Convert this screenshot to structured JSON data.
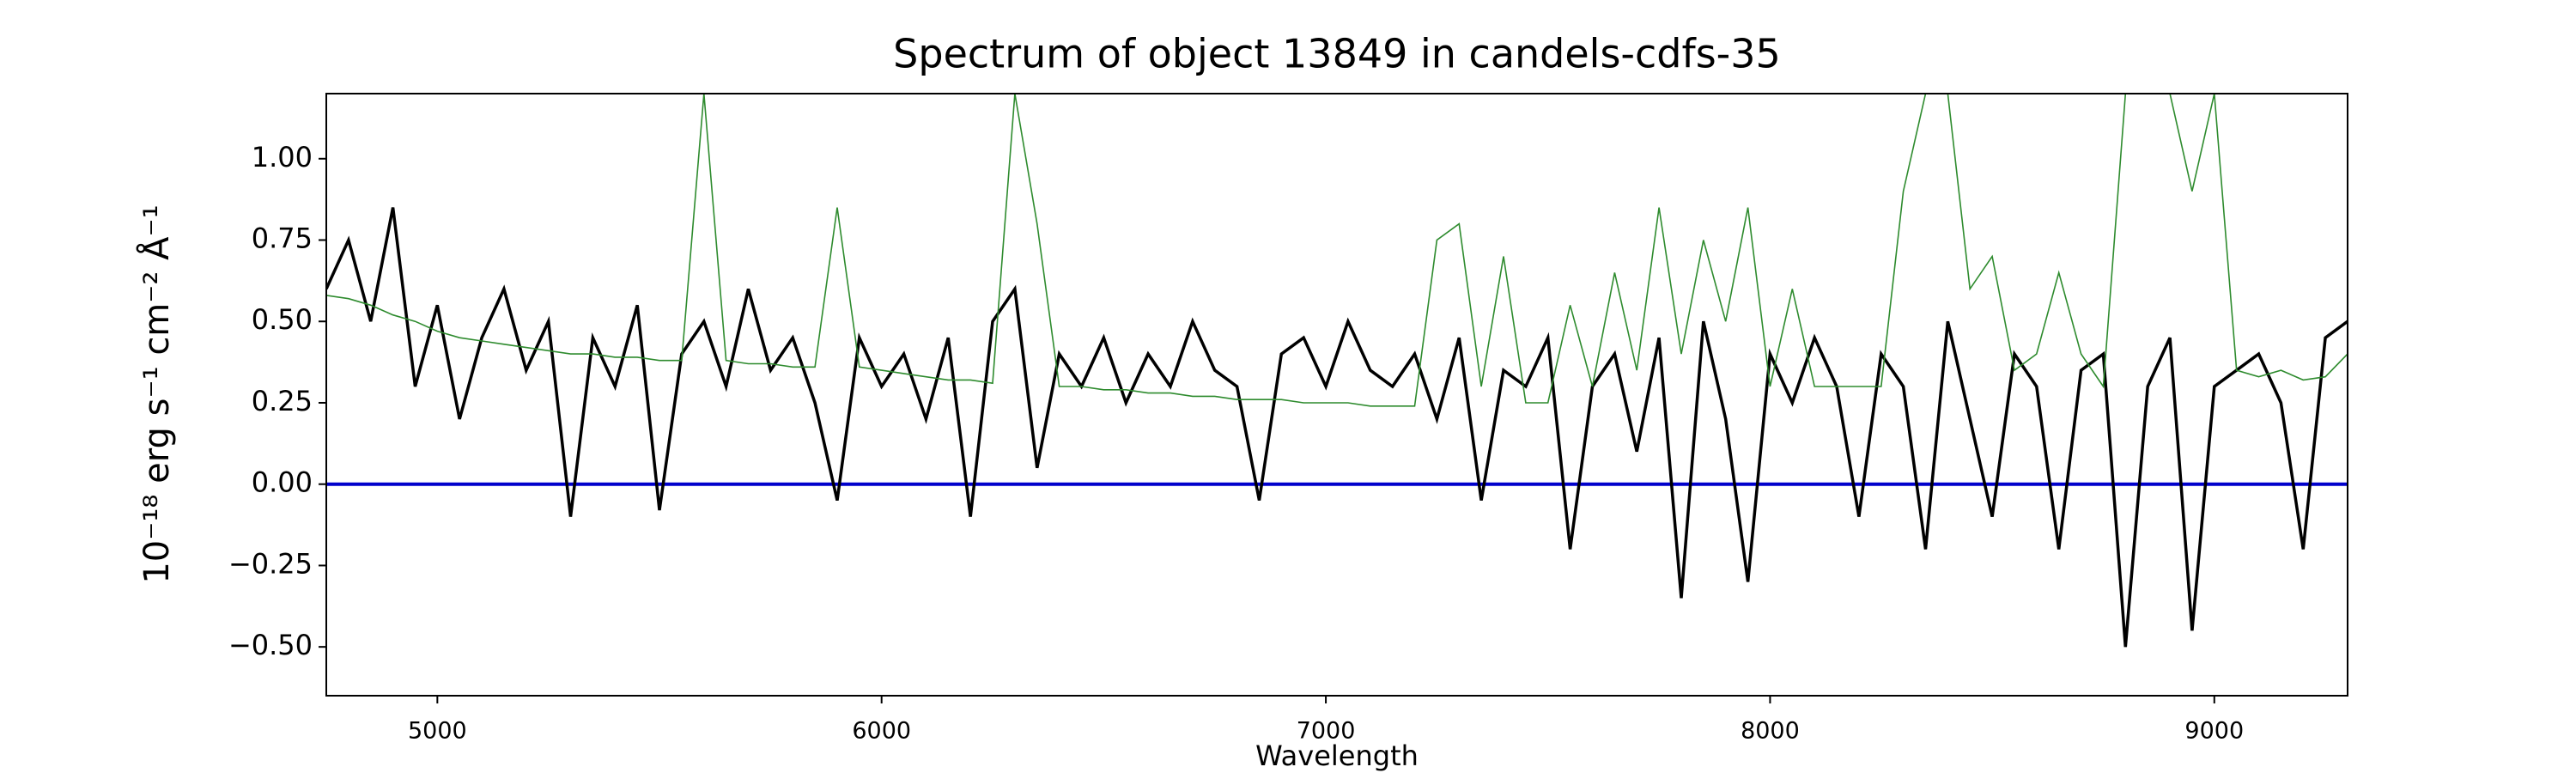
{
  "chart_data": {
    "type": "line",
    "title": "Spectrum of object 13849 in candels-cdfs-35",
    "xlabel": "Wavelength",
    "ylabel": "10⁻¹⁸ erg s⁻¹ cm⁻² Å⁻¹",
    "x": [
      4750,
      4800,
      4850,
      4900,
      4950,
      5000,
      5050,
      5100,
      5150,
      5200,
      5250,
      5300,
      5350,
      5400,
      5450,
      5500,
      5550,
      5600,
      5650,
      5700,
      5750,
      5800,
      5850,
      5900,
      5950,
      6000,
      6050,
      6100,
      6150,
      6200,
      6250,
      6300,
      6350,
      6400,
      6450,
      6500,
      6550,
      6600,
      6650,
      6700,
      6750,
      6800,
      6850,
      6900,
      6950,
      7000,
      7050,
      7100,
      7150,
      7200,
      7250,
      7300,
      7350,
      7400,
      7450,
      7500,
      7550,
      7600,
      7650,
      7700,
      7750,
      7800,
      7850,
      7900,
      7950,
      8000,
      8050,
      8100,
      8150,
      8200,
      8250,
      8300,
      8350,
      8400,
      8450,
      8500,
      8550,
      8600,
      8650,
      8700,
      8750,
      8800,
      8850,
      8900,
      8950,
      9000,
      9050,
      9100,
      9150,
      9200,
      9250,
      9300
    ],
    "series": [
      {
        "color": "#000000",
        "values": [
          0.6,
          0.75,
          0.5,
          0.85,
          0.3,
          0.55,
          0.2,
          0.45,
          0.6,
          0.35,
          0.5,
          -0.1,
          0.45,
          0.3,
          0.55,
          -0.08,
          0.4,
          0.5,
          0.3,
          0.6,
          0.35,
          0.45,
          0.25,
          -0.05,
          0.45,
          0.3,
          0.4,
          0.2,
          0.45,
          -0.1,
          0.5,
          0.6,
          0.05,
          0.4,
          0.3,
          0.45,
          0.25,
          0.4,
          0.3,
          0.5,
          0.35,
          0.3,
          -0.05,
          0.4,
          0.45,
          0.3,
          0.5,
          0.35,
          0.3,
          0.4,
          0.2,
          0.45,
          -0.05,
          0.35,
          0.3,
          0.45,
          -0.2,
          0.3,
          0.4,
          0.1,
          0.45,
          -0.35,
          0.5,
          0.2,
          -0.3,
          0.4,
          0.25,
          0.45,
          0.3,
          -0.1,
          0.4,
          0.3,
          -0.2,
          0.5,
          0.2,
          -0.1,
          0.4,
          0.3,
          -0.2,
          0.35,
          0.4,
          -0.5,
          0.3,
          0.45,
          -0.45,
          0.3,
          0.35,
          0.4,
          0.25,
          -0.2,
          0.45,
          0.5
        ]
      },
      {
        "color": "#2e8b2e",
        "values": [
          0.58,
          0.57,
          0.55,
          0.52,
          0.5,
          0.47,
          0.45,
          0.44,
          0.43,
          0.42,
          0.41,
          0.4,
          0.4,
          0.39,
          0.39,
          0.38,
          0.38,
          1.2,
          0.38,
          0.37,
          0.37,
          0.36,
          0.36,
          0.85,
          0.36,
          0.35,
          0.34,
          0.33,
          0.32,
          0.32,
          0.31,
          1.2,
          0.8,
          0.3,
          0.3,
          0.29,
          0.29,
          0.28,
          0.28,
          0.27,
          0.27,
          0.26,
          0.26,
          0.26,
          0.25,
          0.25,
          0.25,
          0.24,
          0.24,
          0.24,
          0.75,
          0.8,
          0.3,
          0.7,
          0.25,
          0.25,
          0.55,
          0.3,
          0.65,
          0.35,
          0.85,
          0.4,
          0.75,
          0.5,
          0.85,
          0.3,
          0.6,
          0.3,
          0.3,
          0.3,
          0.3,
          0.9,
          1.2,
          1.2,
          0.6,
          0.7,
          0.35,
          0.4,
          0.65,
          0.4,
          0.3,
          1.2,
          1.2,
          1.2,
          0.9,
          1.2,
          0.35,
          0.33,
          0.35,
          0.32,
          0.33,
          0.4
        ]
      }
    ],
    "hlines": [
      {
        "value": 0,
        "color": "#0000cc"
      }
    ],
    "xlim": [
      4750,
      9300
    ],
    "ylim": [
      -0.65,
      1.2
    ],
    "xticks": [
      5000,
      6000,
      7000,
      8000,
      9000
    ],
    "yticks": [
      {
        "value": -0.5,
        "label": "−0.50"
      },
      {
        "value": -0.25,
        "label": "−0.25"
      },
      {
        "value": 0,
        "label": "0.00"
      },
      {
        "value": 0.25,
        "label": "0.25"
      },
      {
        "value": 0.5,
        "label": "0.50"
      },
      {
        "value": 0.75,
        "label": "0.75"
      },
      {
        "value": 1,
        "label": "1.00"
      }
    ],
    "grid": false
  }
}
